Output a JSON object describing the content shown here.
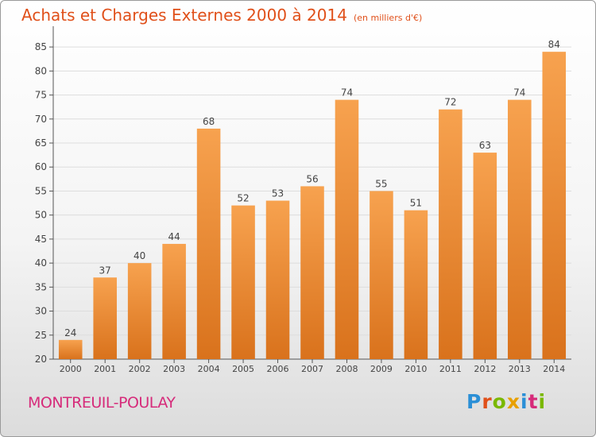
{
  "header": {
    "title": "Achats et Charges Externes 2000 à 2014",
    "subtitle": "(en milliers d'€)"
  },
  "footer": {
    "city": "MONTREUIL-POULAY",
    "logo": [
      "P",
      "r",
      "o",
      "x",
      "i",
      "t",
      "i"
    ]
  },
  "colors": {
    "title": "#e0501a",
    "bar_top": "#f7a24f",
    "bar_bottom": "#d9721c",
    "grid": "#dddddd",
    "city": "#d62b7a"
  },
  "chart_data": {
    "type": "bar",
    "title": "Achats et Charges Externes 2000 à 2014",
    "unit": "(en milliers d'€)",
    "xlabel": "",
    "ylabel": "",
    "categories": [
      "2000",
      "2001",
      "2002",
      "2003",
      "2004",
      "2005",
      "2006",
      "2007",
      "2008",
      "2009",
      "2010",
      "2011",
      "2012",
      "2013",
      "2014"
    ],
    "values": [
      24,
      37,
      40,
      44,
      68,
      52,
      53,
      56,
      74,
      55,
      51,
      72,
      63,
      74,
      84
    ],
    "ylim": [
      20,
      88
    ],
    "yticks": [
      20,
      25,
      30,
      35,
      40,
      45,
      50,
      55,
      60,
      65,
      70,
      75,
      80,
      85
    ],
    "grid": true,
    "legend": "none"
  }
}
